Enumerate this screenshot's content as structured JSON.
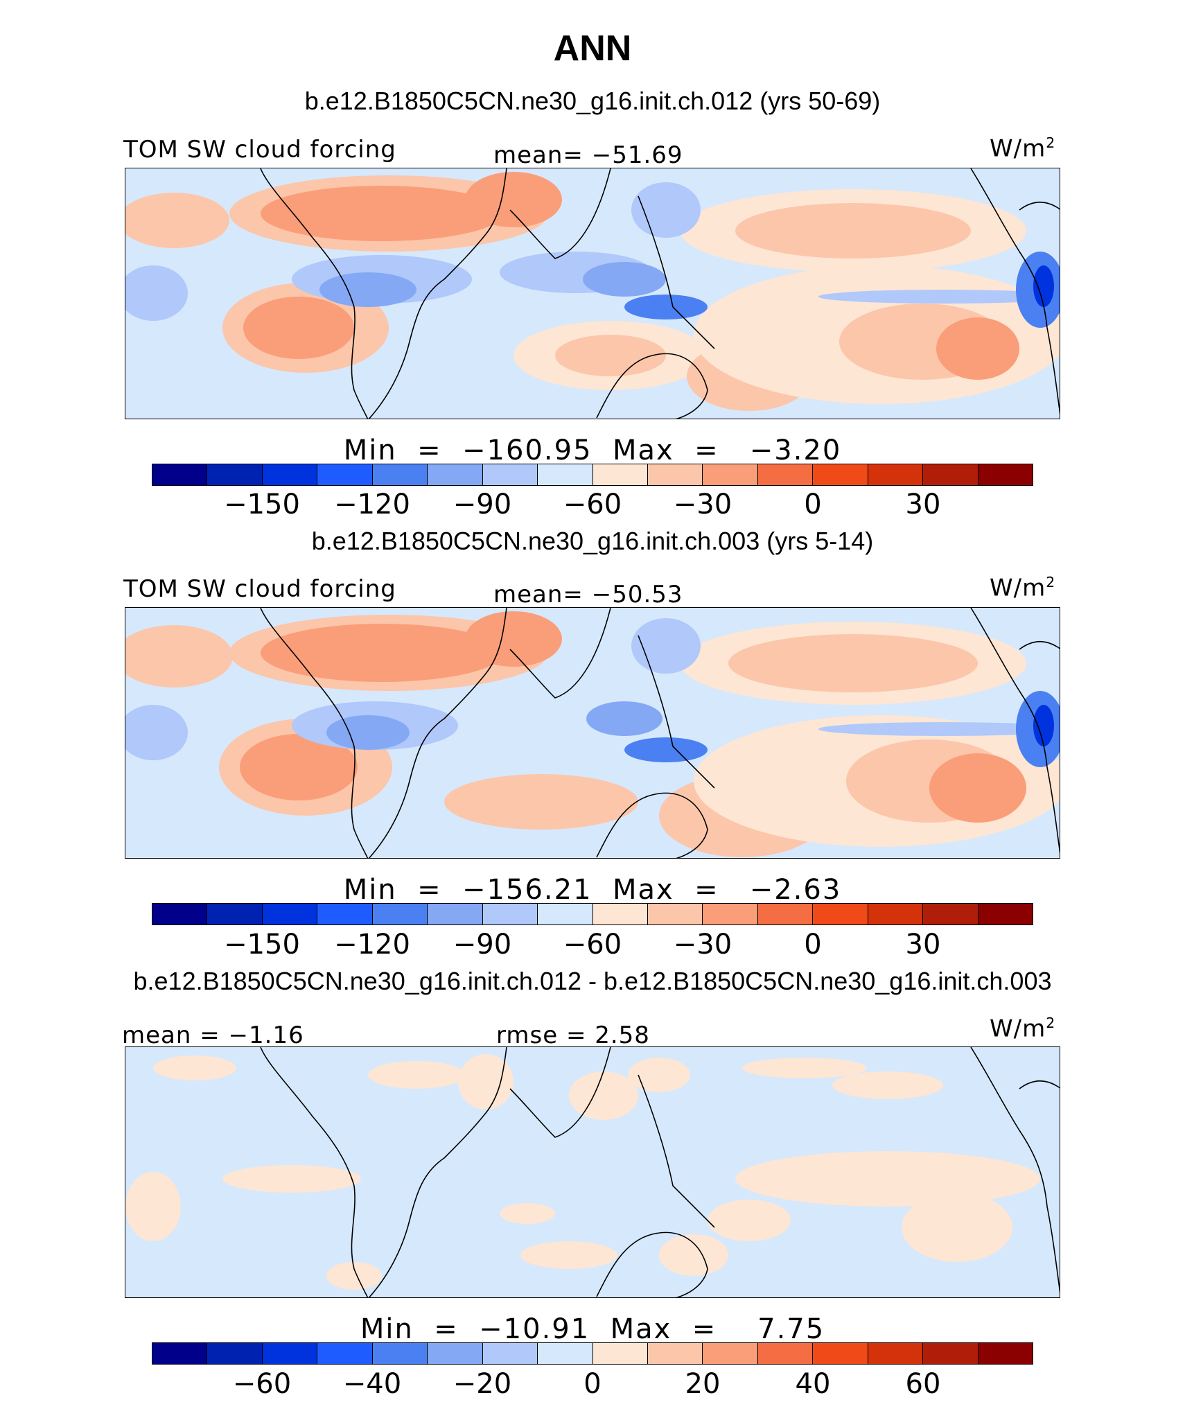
{
  "title": "ANN",
  "colorbar_colors": [
    "#00008b",
    "#0022b0",
    "#0033dd",
    "#1e5cff",
    "#4a80f2",
    "#85a8f5",
    "#b0c8fa",
    "#d6e8fc",
    "#fde6d4",
    "#fcc6aa",
    "#fa9e7a",
    "#f46d43",
    "#f04a19",
    "#d4320a",
    "#b01e0a",
    "#8b0000"
  ],
  "land_color": "#000000",
  "panels": [
    {
      "subtitle": "b.e12.B1850C5CN.ne30_g16.init.ch.012 (yrs 50-69)",
      "left_label": "TOM SW cloud forcing",
      "center_label": "mean= −51.69",
      "units": "W/m",
      "units_sup": "2",
      "minmax": "Min  =  −160.95  Max  =   −3.20",
      "ticks": [
        "−150",
        "−120",
        "−90",
        "−60",
        "−30",
        "0",
        "30"
      ]
    },
    {
      "subtitle": "b.e12.B1850C5CN.ne30_g16.init.ch.003 (yrs 5-14)",
      "left_label": "TOM SW cloud forcing",
      "center_label": "mean= −50.53",
      "units": "W/m",
      "units_sup": "2",
      "minmax": "Min  =  −156.21  Max  =   −2.63",
      "ticks": [
        "−150",
        "−120",
        "−90",
        "−60",
        "−30",
        "0",
        "30"
      ]
    },
    {
      "subtitle": "b.e12.B1850C5CN.ne30_g16.init.ch.012 - b.e12.B1850C5CN.ne30_g16.init.ch.003",
      "left_label": "mean =  −1.16",
      "center_label": "rmse =    2.58",
      "units": "W/m",
      "units_sup": "2",
      "minmax": "Min  =  −10.91  Max  =    7.75",
      "ticks": [
        "−60",
        "−40",
        "−20",
        "0",
        "20",
        "40",
        "60"
      ]
    }
  ]
}
